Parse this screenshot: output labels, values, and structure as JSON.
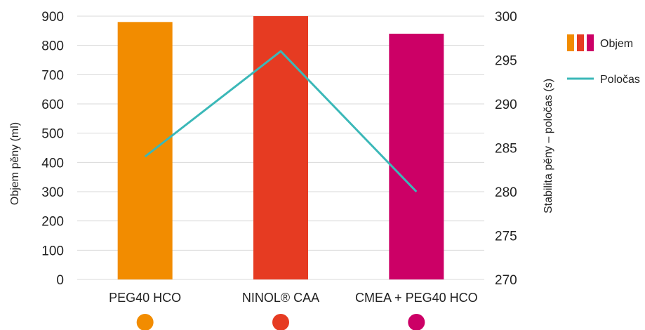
{
  "chart_data": {
    "type": "bar",
    "categories": [
      "PEG40 HCO",
      "NINOL® CAA",
      "CMEA + PEG40 HCO"
    ],
    "category_colors": [
      "#f28c00",
      "#e63b22",
      "#cc0066"
    ],
    "series": [
      {
        "name": "Objem",
        "type": "bar",
        "axis": "left",
        "values": [
          880,
          900,
          840
        ]
      },
      {
        "name": "Poločas",
        "type": "line",
        "axis": "right",
        "color": "#3bb8b8",
        "values": [
          284,
          296,
          280
        ]
      }
    ],
    "ylabel": "Objem pěny (ml)",
    "ylim": [
      0,
      900
    ],
    "yticks": [
      "0",
      "100",
      "200",
      "300",
      "400",
      "500",
      "600",
      "700",
      "800",
      "900"
    ],
    "y2label": "Stabilita pěny – poločas (s)",
    "y2lim": [
      270,
      300
    ],
    "y2ticks": [
      "270",
      "275",
      "280",
      "285",
      "290",
      "295",
      "300"
    ],
    "grid": true,
    "legend_position": "right",
    "legend": [
      {
        "label": "Objem",
        "kind": "bar-swatch"
      },
      {
        "label": "Poločas",
        "kind": "line"
      }
    ]
  }
}
